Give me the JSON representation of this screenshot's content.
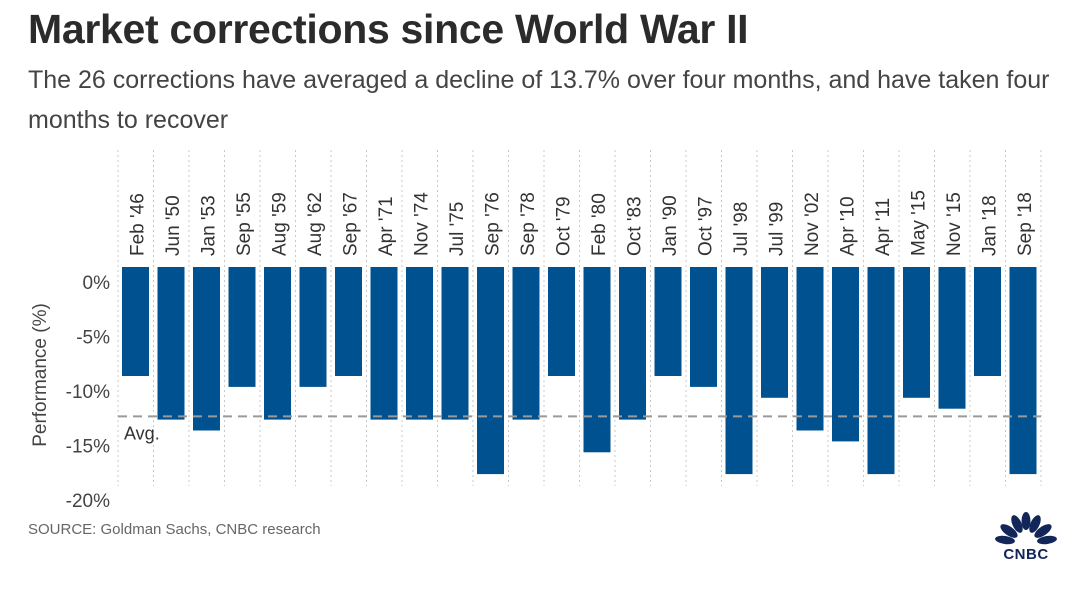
{
  "title": "Market corrections since World War II",
  "subtitle": "The 26 corrections have averaged a decline of 13.7% over four months, and have taken four months to recover",
  "source": "SOURCE: Goldman Sachs, CNBC research",
  "logo": {
    "text": "CNBC",
    "color": "#13265a"
  },
  "chart_data": {
    "type": "bar",
    "title": "",
    "xlabel": "",
    "ylabel": "Performance (%)",
    "ylim": [
      -20,
      0
    ],
    "yticks": [
      "0%",
      "-5%",
      "-10%",
      "-15%",
      "-20%"
    ],
    "ytick_values": [
      0,
      -5,
      -10,
      -15,
      -20
    ],
    "grid": "vertical dotted",
    "bar_color": "#00518f",
    "categories": [
      "Feb '46",
      "Jun '50",
      "Jan '53",
      "Sep '55",
      "Aug '59",
      "Aug '62",
      "Sep '67",
      "Apr '71",
      "Nov '74",
      "Jul '75",
      "Sep '76",
      "Sep '78",
      "Oct '79",
      "Feb '80",
      "Oct '83",
      "Jan '90",
      "Oct '97",
      "Jul '98",
      "Jul '99",
      "Nov '02",
      "Apr '10",
      "Apr '11",
      "May '15",
      "Nov '15",
      "Jan '18",
      "Sep '18"
    ],
    "values": [
      -10,
      -14,
      -15,
      -11,
      -14,
      -11,
      -10,
      -14,
      -14,
      -14,
      -19,
      -14,
      -10,
      -17,
      -14,
      -10,
      -11,
      -19,
      -12,
      -15,
      -16,
      -19,
      -12,
      -13,
      -10,
      -19
    ],
    "average": {
      "value": -13.7,
      "label": "Avg."
    }
  }
}
